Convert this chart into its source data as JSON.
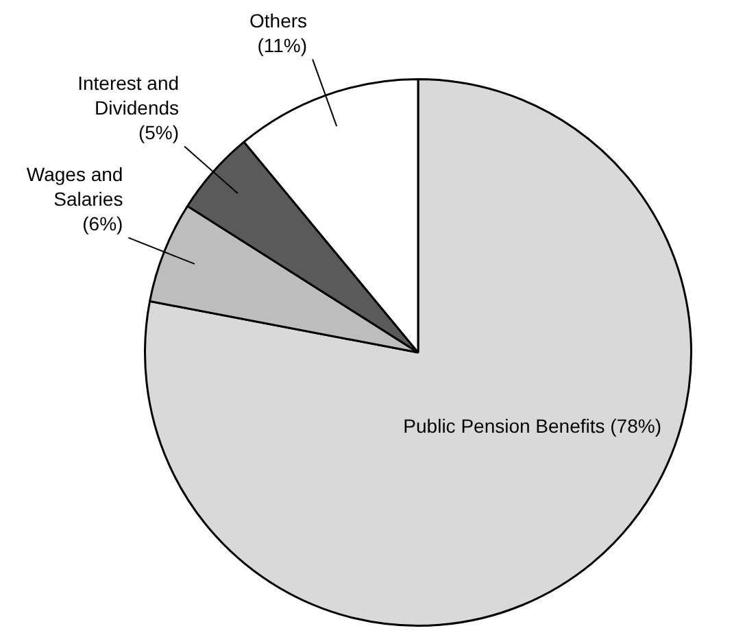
{
  "chart_data": {
    "type": "pie",
    "categories": [
      "Public Pension Benefits",
      "Wages and Salaries",
      "Interest and Dividends",
      "Others"
    ],
    "values": [
      78,
      6,
      5,
      11
    ],
    "colors": [
      "#d9d9d9",
      "#bdbdbd",
      "#5a5a5a",
      "#ffffff"
    ],
    "value_labels": [
      "(78%)",
      "(6%)",
      "(5%)",
      "(11%)"
    ],
    "legend": false
  }
}
